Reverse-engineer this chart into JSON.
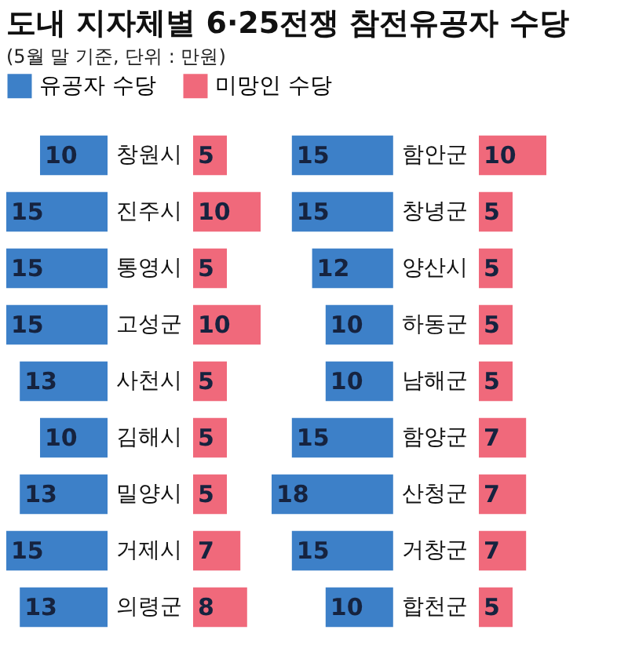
{
  "chart_data": [
    {
      "type": "bar",
      "orientation": "horizontal",
      "title": "도내 지자체별 6·25전쟁 참전유공자 수당",
      "annotations": [
        "(5월 말 기준, 단위 : 만원)"
      ],
      "categories": [
        "창원시",
        "진주시",
        "통영시",
        "고성군",
        "사천시",
        "김해시",
        "밀양시",
        "거제시",
        "의령군"
      ],
      "series": [
        {
          "name": "유공자 수당",
          "color": "#3d80c8",
          "values": [
            10,
            15,
            15,
            15,
            13,
            10,
            13,
            15,
            13
          ]
        }
      ],
      "xlim": [
        15,
        0
      ],
      "data_labels": true,
      "legend": "top right"
    },
    {
      "type": "bar",
      "orientation": "horizontal",
      "categories": [
        null,
        null,
        null,
        null,
        null,
        null,
        null,
        null,
        null
      ],
      "series": [
        {
          "name": "미망인 수당",
          "color": "#f0697b",
          "values": [
            5,
            10,
            5,
            10,
            5,
            5,
            5,
            7,
            8
          ]
        }
      ],
      "xlim": [
        0,
        10
      ],
      "data_labels": true
    },
    {
      "type": "bar",
      "orientation": "horizontal",
      "categories": [
        "함안군",
        "창녕군",
        "양산시",
        "하동군",
        "남해군",
        "함양군",
        "산청군",
        "거창군",
        "합천군"
      ],
      "series": [
        {
          "name": "유공자 수당",
          "color": "#3d80c8",
          "values": [
            15,
            15,
            12,
            10,
            10,
            15,
            18,
            15,
            10
          ]
        }
      ],
      "xlim": [
        18,
        0
      ],
      "data_labels": true
    },
    {
      "type": "bar",
      "orientation": "horizontal",
      "categories": [
        null,
        null,
        null,
        null,
        null,
        null,
        null,
        null,
        null
      ],
      "series": [
        {
          "name": "미망인 수당",
          "color": "#f0697b",
          "values": [
            10,
            5,
            5,
            5,
            5,
            7,
            7,
            7,
            5
          ]
        }
      ],
      "xlim": [
        0,
        10
      ],
      "data_labels": true
    }
  ]
}
